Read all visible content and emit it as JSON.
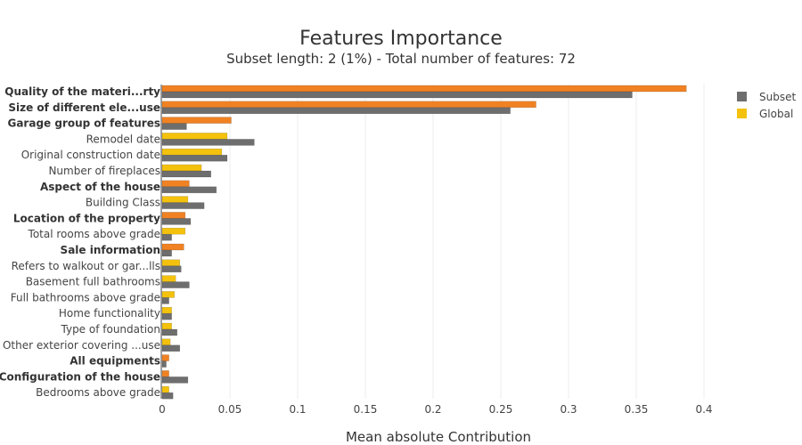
{
  "chart_data": {
    "type": "bar",
    "orientation": "horizontal",
    "title": "Features Importance",
    "subtitle": "Subset length: 2 (1%) - Total number of features: 72",
    "xlabel": "Mean absolute Contribution",
    "xlim": [
      0,
      0.42
    ],
    "xticks": [
      "0",
      "0.05",
      "0.1",
      "0.15",
      "0.2",
      "0.25",
      "0.3",
      "0.35",
      "0.4"
    ],
    "xtick_values": [
      0,
      0.05,
      0.1,
      0.15,
      0.2,
      0.25,
      0.3,
      0.35,
      0.4
    ],
    "grid": true,
    "legend_position": "top-right",
    "categories": [
      "Quality of the materi...rty",
      "Size of different ele...use",
      "Garage group of features",
      "Remodel date",
      "Original construction date",
      "Number of fireplaces",
      "Aspect of the house",
      "Building Class",
      "Location of the property",
      "Total rooms above grade",
      "Sale information",
      "Refers to walkout or gar...lls",
      "Basement full bathrooms",
      "Full bathrooms above grade",
      "Home functionality",
      "Type of foundation",
      "Other exterior covering ...use",
      "All equipments",
      "Configuration of the house",
      "Bedrooms above grade"
    ],
    "bold_categories": [
      true,
      true,
      true,
      false,
      false,
      false,
      true,
      false,
      true,
      false,
      true,
      false,
      false,
      false,
      false,
      false,
      false,
      true,
      true,
      false
    ],
    "series": [
      {
        "name": "Subset",
        "color": "#6e6e6e",
        "values": [
          0.347,
          0.257,
          0.018,
          0.068,
          0.048,
          0.036,
          0.04,
          0.031,
          0.021,
          0.007,
          0.007,
          0.014,
          0.02,
          0.005,
          0.007,
          0.011,
          0.013,
          0.003,
          0.019,
          0.008
        ]
      },
      {
        "name": "Global",
        "colors": [
          "#f08223",
          "#f08223",
          "#f08223",
          "#f4c20d",
          "#f4c20d",
          "#f4c20d",
          "#f08223",
          "#f4c20d",
          "#f08223",
          "#f4c20d",
          "#f08223",
          "#f4c20d",
          "#f4c20d",
          "#f4c20d",
          "#f4c20d",
          "#f4c20d",
          "#f4c20d",
          "#f08223",
          "#f08223",
          "#f4c20d"
        ],
        "legend_color": "#f4c20d",
        "values": [
          0.387,
          0.276,
          0.051,
          0.048,
          0.044,
          0.029,
          0.02,
          0.019,
          0.017,
          0.017,
          0.016,
          0.013,
          0.01,
          0.009,
          0.007,
          0.007,
          0.006,
          0.005,
          0.005,
          0.005
        ]
      }
    ]
  }
}
